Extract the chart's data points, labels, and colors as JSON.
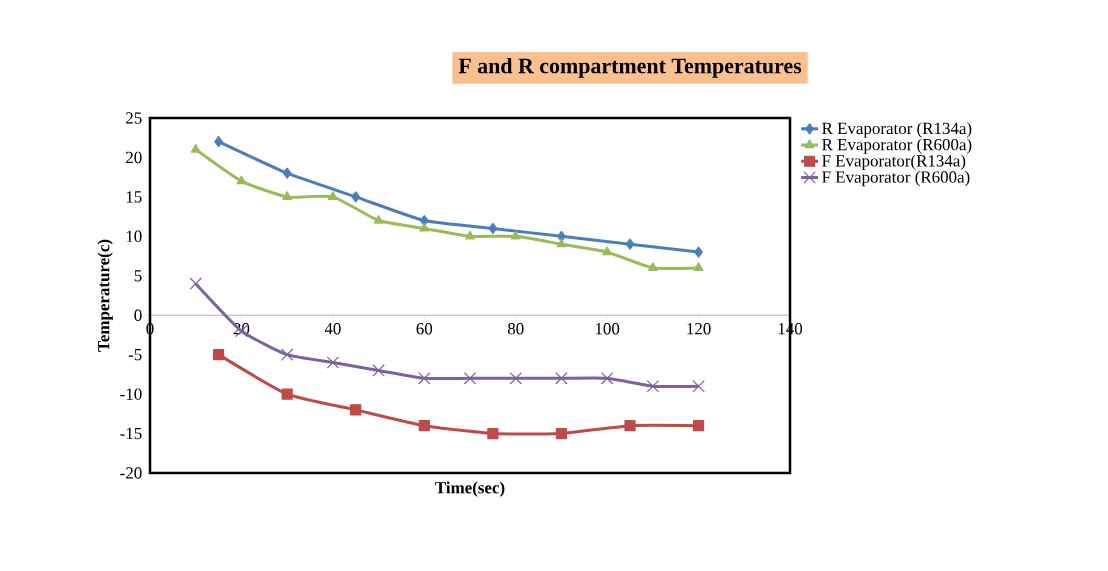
{
  "chart_data": {
    "type": "line",
    "title": "F and R compartment Temperatures",
    "xlabel": "Time(sec)",
    "ylabel": "Temperature(c)",
    "xlim": [
      0,
      140
    ],
    "xticks": [
      0,
      20,
      40,
      60,
      80,
      100,
      120,
      140
    ],
    "ylim": [
      -20,
      25
    ],
    "yticks": [
      -20,
      -15,
      -10,
      -5,
      0,
      5,
      10,
      15,
      20,
      25
    ],
    "grid": false,
    "legend": "top right",
    "series": [
      {
        "name": "R Evaporator (R134a)",
        "color": "#4a7ebb",
        "marker": "diamond",
        "x": [
          15,
          30,
          45,
          60,
          75,
          90,
          105,
          120
        ],
        "values": [
          22,
          18,
          15,
          12,
          11,
          10,
          9,
          8
        ]
      },
      {
        "name": "R Evaporator (R600a)",
        "color": "#9bbb59",
        "marker": "triangle",
        "x": [
          10,
          20,
          30,
          40,
          50,
          60,
          70,
          80,
          90,
          100,
          110,
          120
        ],
        "values": [
          21,
          17,
          15,
          15,
          12,
          11,
          10,
          10,
          9,
          8,
          6,
          6
        ]
      },
      {
        "name": "F Evaporator(R134a)",
        "color": "#be4b48",
        "marker": "square",
        "x": [
          15,
          30,
          45,
          60,
          75,
          90,
          105,
          120
        ],
        "values": [
          -5,
          -10,
          -12,
          -14,
          -15,
          -15,
          -14,
          -14
        ]
      },
      {
        "name": "F Evaporator (R600a)",
        "color": "#7d60a0",
        "marker": "cross",
        "x": [
          10,
          20,
          30,
          40,
          50,
          60,
          70,
          80,
          90,
          100,
          110,
          120
        ],
        "values": [
          4,
          -2,
          -5,
          -6,
          -7,
          -8,
          -8,
          -8,
          -8,
          -8,
          -9,
          -9
        ]
      }
    ]
  }
}
